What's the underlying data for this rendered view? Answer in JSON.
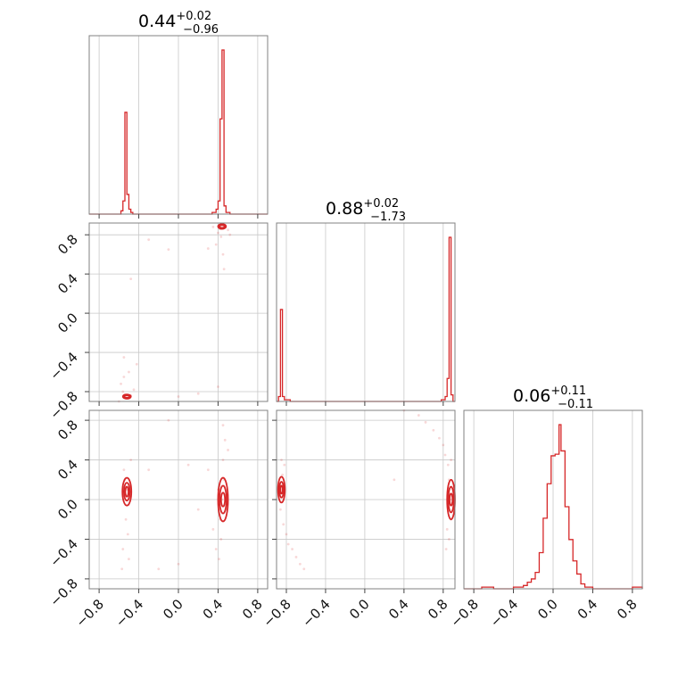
{
  "chart_data": {
    "type": "corner",
    "color": "#d62728",
    "parameters": [
      {
        "index": 0,
        "title": {
          "median": "0.44",
          "plus": "+0.02",
          "minus": "−0.96"
        },
        "range": [
          -0.9,
          0.9
        ]
      },
      {
        "index": 1,
        "title": {
          "median": "0.88",
          "plus": "+0.02",
          "minus": "−1.73"
        },
        "range": [
          -0.9,
          0.92
        ]
      },
      {
        "index": 2,
        "title": {
          "median": "0.06",
          "plus": "+0.11",
          "minus": "−0.11"
        },
        "range": [
          -0.9,
          0.9
        ]
      }
    ],
    "ticks": [
      -0.8,
      -0.4,
      0.0,
      0.4,
      0.8
    ],
    "tick_labels": [
      "−0.8",
      "−0.4",
      "0.0",
      "0.4",
      "0.8"
    ],
    "grid": true,
    "histograms": [
      {
        "param": 0,
        "bins": [
          {
            "x0": -0.58,
            "x1": -0.56,
            "y": 0.02
          },
          {
            "x0": -0.56,
            "x1": -0.54,
            "y": 0.08
          },
          {
            "x0": -0.54,
            "x1": -0.52,
            "y": 0.62
          },
          {
            "x0": -0.52,
            "x1": -0.5,
            "y": 0.12
          },
          {
            "x0": -0.5,
            "x1": -0.48,
            "y": 0.03
          },
          {
            "x0": -0.48,
            "x1": -0.46,
            "y": 0.01
          },
          {
            "x0": 0.34,
            "x1": 0.38,
            "y": 0.01
          },
          {
            "x0": 0.38,
            "x1": 0.4,
            "y": 0.03
          },
          {
            "x0": 0.4,
            "x1": 0.42,
            "y": 0.08
          },
          {
            "x0": 0.42,
            "x1": 0.44,
            "y": 0.58
          },
          {
            "x0": 0.44,
            "x1": 0.46,
            "y": 1.0
          },
          {
            "x0": 0.46,
            "x1": 0.48,
            "y": 0.05
          },
          {
            "x0": 0.48,
            "x1": 0.52,
            "y": 0.01
          }
        ]
      },
      {
        "param": 1,
        "bins": [
          {
            "x0": -0.88,
            "x1": -0.86,
            "y": 0.03
          },
          {
            "x0": -0.86,
            "x1": -0.84,
            "y": 0.56
          },
          {
            "x0": -0.84,
            "x1": -0.82,
            "y": 0.03
          },
          {
            "x0": -0.82,
            "x1": -0.76,
            "y": 0.01
          },
          {
            "x0": 0.78,
            "x1": 0.82,
            "y": 0.01
          },
          {
            "x0": 0.82,
            "x1": 0.84,
            "y": 0.03
          },
          {
            "x0": 0.84,
            "x1": 0.86,
            "y": 0.14
          },
          {
            "x0": 0.86,
            "x1": 0.88,
            "y": 1.0
          },
          {
            "x0": 0.88,
            "x1": 0.9,
            "y": 0.04
          }
        ]
      },
      {
        "param": 2,
        "bins": [
          {
            "x0": -0.72,
            "x1": -0.6,
            "y": 0.01
          },
          {
            "x0": -0.4,
            "x1": -0.3,
            "y": 0.01
          },
          {
            "x0": -0.3,
            "x1": -0.26,
            "y": 0.02
          },
          {
            "x0": -0.26,
            "x1": -0.22,
            "y": 0.04
          },
          {
            "x0": -0.22,
            "x1": -0.18,
            "y": 0.06
          },
          {
            "x0": -0.18,
            "x1": -0.14,
            "y": 0.1
          },
          {
            "x0": -0.14,
            "x1": -0.1,
            "y": 0.22
          },
          {
            "x0": -0.1,
            "x1": -0.06,
            "y": 0.43
          },
          {
            "x0": -0.06,
            "x1": -0.02,
            "y": 0.64
          },
          {
            "x0": -0.02,
            "x1": 0.02,
            "y": 0.81
          },
          {
            "x0": 0.02,
            "x1": 0.06,
            "y": 0.82
          },
          {
            "x0": 0.06,
            "x1": 0.08,
            "y": 1.0
          },
          {
            "x0": 0.08,
            "x1": 0.12,
            "y": 0.84
          },
          {
            "x0": 0.12,
            "x1": 0.16,
            "y": 0.5
          },
          {
            "x0": 0.16,
            "x1": 0.2,
            "y": 0.3
          },
          {
            "x0": 0.2,
            "x1": 0.24,
            "y": 0.17
          },
          {
            "x0": 0.24,
            "x1": 0.28,
            "y": 0.09
          },
          {
            "x0": 0.28,
            "x1": 0.32,
            "y": 0.03
          },
          {
            "x0": 0.32,
            "x1": 0.4,
            "y": 0.01
          },
          {
            "x0": 0.8,
            "x1": 0.9,
            "y": 0.01
          }
        ]
      }
    ],
    "scatter_2d": [
      {
        "x_param": 0,
        "y_param": 1,
        "points": [
          [
            0.44,
            0.88
          ],
          [
            0.42,
            0.86
          ],
          [
            0.47,
            0.9
          ],
          [
            0.4,
            0.82
          ],
          [
            0.5,
            0.85
          ],
          [
            0.38,
            0.7
          ],
          [
            0.45,
            0.6
          ],
          [
            0.43,
            0.78
          ],
          [
            0.35,
            0.88
          ],
          [
            0.52,
            0.8
          ],
          [
            0.3,
            0.66
          ],
          [
            0.46,
            0.45
          ],
          [
            -0.52,
            -0.85
          ],
          [
            -0.54,
            -0.83
          ],
          [
            -0.5,
            -0.87
          ],
          [
            -0.56,
            -0.8
          ],
          [
            -0.48,
            -0.84
          ],
          [
            -0.58,
            -0.72
          ],
          [
            -0.55,
            -0.65
          ],
          [
            -0.45,
            -0.78
          ],
          [
            -0.6,
            -0.9
          ],
          [
            -0.5,
            -0.6
          ],
          [
            -0.42,
            -0.52
          ],
          [
            -0.55,
            -0.45
          ],
          [
            -0.48,
            0.35
          ],
          [
            -0.3,
            0.75
          ],
          [
            0.0,
            -0.85
          ],
          [
            0.2,
            -0.82
          ],
          [
            0.4,
            -0.75
          ],
          [
            -0.1,
            0.65
          ]
        ],
        "contours": [
          {
            "cx": 0.44,
            "cy": 0.885,
            "rx": 0.04,
            "ry": 0.025
          },
          {
            "cx": 0.44,
            "cy": 0.885,
            "rx": 0.025,
            "ry": 0.015
          },
          {
            "cx": -0.52,
            "cy": -0.85,
            "rx": 0.04,
            "ry": 0.022
          },
          {
            "cx": -0.52,
            "cy": -0.85,
            "rx": 0.025,
            "ry": 0.013
          }
        ]
      },
      {
        "x_param": 0,
        "y_param": 2,
        "points": [
          [
            -0.52,
            0.1
          ],
          [
            -0.54,
            0.2
          ],
          [
            -0.5,
            -0.05
          ],
          [
            -0.53,
            -0.2
          ],
          [
            -0.55,
            0.3
          ],
          [
            -0.51,
            -0.35
          ],
          [
            -0.56,
            -0.5
          ],
          [
            -0.5,
            -0.6
          ],
          [
            -0.48,
            0.4
          ],
          [
            -0.57,
            -0.7
          ],
          [
            -0.3,
            0.3
          ],
          [
            -0.2,
            -0.7
          ],
          [
            0.44,
            0.0
          ],
          [
            0.46,
            0.2
          ],
          [
            0.42,
            -0.2
          ],
          [
            0.45,
            0.4
          ],
          [
            0.43,
            -0.4
          ],
          [
            0.47,
            0.6
          ],
          [
            0.41,
            -0.6
          ],
          [
            0.45,
            0.75
          ],
          [
            0.48,
            -0.1
          ],
          [
            0.4,
            0.1
          ],
          [
            0.5,
            0.5
          ],
          [
            0.38,
            -0.5
          ],
          [
            0.3,
            0.3
          ],
          [
            0.35,
            -0.3
          ],
          [
            0.1,
            0.35
          ],
          [
            -0.1,
            0.8
          ],
          [
            0.0,
            -0.65
          ],
          [
            0.2,
            -0.1
          ]
        ],
        "contours": [
          {
            "cx": -0.52,
            "cy": 0.08,
            "rx": 0.045,
            "ry": 0.14
          },
          {
            "cx": -0.52,
            "cy": 0.08,
            "rx": 0.03,
            "ry": 0.09
          },
          {
            "cx": -0.52,
            "cy": 0.08,
            "rx": 0.016,
            "ry": 0.05
          },
          {
            "cx": 0.45,
            "cy": 0.0,
            "rx": 0.05,
            "ry": 0.22
          },
          {
            "cx": 0.45,
            "cy": 0.0,
            "rx": 0.035,
            "ry": 0.14
          },
          {
            "cx": 0.45,
            "cy": 0.0,
            "rx": 0.02,
            "ry": 0.07
          }
        ]
      },
      {
        "x_param": 1,
        "y_param": 2,
        "points": [
          [
            -0.85,
            0.1
          ],
          [
            -0.84,
            0.25
          ],
          [
            -0.86,
            -0.1
          ],
          [
            -0.83,
            -0.25
          ],
          [
            -0.82,
            0.35
          ],
          [
            -0.8,
            -0.35
          ],
          [
            -0.78,
            -0.45
          ],
          [
            -0.74,
            -0.5
          ],
          [
            -0.7,
            -0.58
          ],
          [
            -0.66,
            -0.65
          ],
          [
            -0.62,
            -0.7
          ],
          [
            -0.85,
            0.4
          ],
          [
            0.87,
            0.0
          ],
          [
            0.86,
            0.2
          ],
          [
            0.88,
            -0.2
          ],
          [
            0.85,
            0.35
          ],
          [
            0.84,
            -0.3
          ],
          [
            0.82,
            0.45
          ],
          [
            0.8,
            0.55
          ],
          [
            0.76,
            0.62
          ],
          [
            0.7,
            0.7
          ],
          [
            0.62,
            0.78
          ],
          [
            0.55,
            0.85
          ],
          [
            0.86,
            -0.4
          ],
          [
            0.3,
            0.2
          ],
          [
            0.83,
            -0.5
          ],
          [
            0.4,
            0.9
          ],
          [
            0.88,
            0.4
          ]
        ],
        "contours": [
          {
            "cx": -0.85,
            "cy": 0.1,
            "rx": 0.035,
            "ry": 0.13
          },
          {
            "cx": -0.85,
            "cy": 0.1,
            "rx": 0.022,
            "ry": 0.08
          },
          {
            "cx": -0.85,
            "cy": 0.1,
            "rx": 0.012,
            "ry": 0.04
          },
          {
            "cx": 0.88,
            "cy": 0.0,
            "rx": 0.04,
            "ry": 0.2
          },
          {
            "cx": 0.88,
            "cy": 0.0,
            "rx": 0.028,
            "ry": 0.13
          },
          {
            "cx": 0.88,
            "cy": 0.0,
            "rx": 0.015,
            "ry": 0.06
          }
        ]
      }
    ]
  }
}
